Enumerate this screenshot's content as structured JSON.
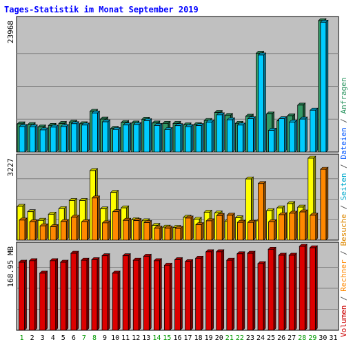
{
  "chart_data": {
    "type": "bar",
    "title": "Tages-Statistik im Monat September 2019",
    "categories": [
      "1",
      "2",
      "3",
      "4",
      "5",
      "6",
      "7",
      "8",
      "9",
      "10",
      "11",
      "12",
      "13",
      "14",
      "15",
      "16",
      "17",
      "18",
      "19",
      "20",
      "21",
      "22",
      "23",
      "24",
      "25",
      "26",
      "27",
      "28",
      "29",
      "30",
      "31"
    ],
    "weekend_days": [
      "1",
      "7",
      "8",
      "14",
      "15",
      "21",
      "22",
      "28",
      "29"
    ],
    "grid": true,
    "panels": [
      {
        "id": "hits",
        "ymax_label": "23968",
        "ymax": 23968,
        "series": [
          {
            "name": "Anfragen",
            "color": "#339966",
            "values": [
              5140,
              5010,
              4580,
              4850,
              5220,
              5450,
              5160,
              7430,
              6010,
              4300,
              5380,
              5300,
              5980,
              5300,
              5230,
              5220,
              4950,
              5000,
              5750,
              7210,
              6680,
              5240,
              6530,
              18020,
              6950,
              5690,
              6590,
              8560,
              null,
              23968,
              null
            ]
          },
          {
            "name": "Dateien",
            "color": "#00ccff",
            "values": [
              4650,
              4600,
              4030,
              4540,
              4650,
              5170,
              4920,
              7120,
              5510,
              4100,
              4930,
              5010,
              5710,
              4840,
              4090,
              4810,
              4640,
              4820,
              5460,
              6790,
              5880,
              4920,
              6070,
              17700,
              3960,
              6080,
              5470,
              6010,
              7630,
              23680,
              null
            ]
          }
        ]
      },
      {
        "id": "visits",
        "ymax_label": "3227",
        "ymax": 3227,
        "series": [
          {
            "name": "Seiten",
            "color": "#ffff00",
            "values": [
              1330,
              1120,
              780,
              1020,
              1240,
              1560,
              1560,
              2740,
              1230,
              1880,
              1270,
              800,
              760,
              580,
              510,
              500,
              900,
              820,
              1100,
              1070,
              750,
              880,
              2410,
              760,
              1160,
              1270,
              1440,
              1300,
              3227,
              null,
              null
            ]
          },
          {
            "name": "Besuche",
            "color": "#ff8800",
            "values": [
              790,
              720,
              560,
              530,
              730,
              900,
              720,
              1660,
              680,
              1120,
              780,
              770,
              690,
              470,
              470,
              460,
              870,
              610,
              760,
              970,
              980,
              700,
              700,
              2230,
              720,
              1000,
              1060,
              1110,
              980,
              2790,
              null
            ]
          }
        ]
      },
      {
        "id": "volume",
        "ymax_label": "168.95 MB",
        "ymax": 168.95,
        "series": [
          {
            "name": "Volumen",
            "color": "#dd0000",
            "values": [
              137,
              140,
              115,
              140,
              137,
              155,
              141,
              142,
              150,
              115,
              150,
              141,
              149,
              140,
              131,
              142,
              138,
              145,
              158,
              158,
              141,
              154,
              155,
              134,
              163,
              151,
              151,
              168.95,
              166,
              null,
              null
            ]
          }
        ]
      }
    ],
    "right_label": [
      {
        "text": "Volumen",
        "color": "#cc0000"
      },
      {
        "text": " / ",
        "color": "#555555"
      },
      {
        "text": "Rechner",
        "color": "#ff8800"
      },
      {
        "text": " / ",
        "color": "#555555"
      },
      {
        "text": "Besuche",
        "color": "#dd8800"
      },
      {
        "text": " / ",
        "color": "#555555"
      },
      {
        "text": "Seiten",
        "color": "#00aacc"
      },
      {
        "text": " / ",
        "color": "#555555"
      },
      {
        "text": "Dateien",
        "color": "#0055ff"
      },
      {
        "text": " / ",
        "color": "#555555"
      },
      {
        "text": "Anfragen",
        "color": "#339966"
      }
    ],
    "colors": {
      "title": "#0000ff",
      "background": "#c0c0c0",
      "frame": "#000000",
      "gridline": "#808080",
      "weekday_label": "#000000",
      "weekend_label": "#009900"
    }
  }
}
